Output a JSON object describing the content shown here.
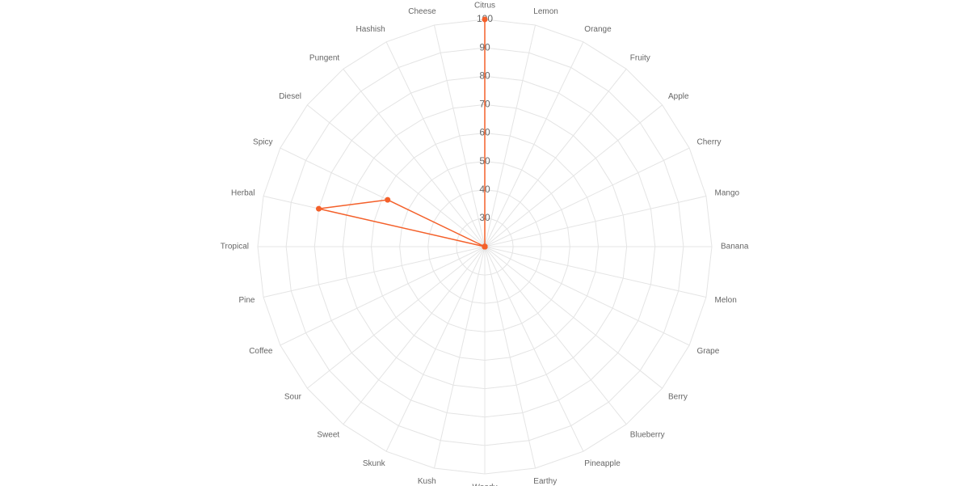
{
  "chart_data": {
    "type": "radar",
    "title": "",
    "axes": [
      "Citrus",
      "Lemon",
      "Orange",
      "Fruity",
      "Apple",
      "Cherry",
      "Mango",
      "Banana",
      "Melon",
      "Grape",
      "Berry",
      "Blueberry",
      "Pineapple",
      "Earthy",
      "Woody",
      "Kush",
      "Skunk",
      "Sweet",
      "Sour",
      "Coffee",
      "Pine",
      "Tropical",
      "Herbal",
      "Spicy",
      "Diesel",
      "Pungent",
      "Hashish",
      "Cheese"
    ],
    "r_range": [
      20,
      100
    ],
    "r_ticks": [
      30,
      40,
      50,
      60,
      70,
      80,
      90,
      100
    ],
    "grid": true,
    "series": [
      {
        "color": "#f4602a",
        "values": [
          100,
          20,
          20,
          20,
          20,
          20,
          20,
          20,
          20,
          20,
          20,
          20,
          20,
          20,
          20,
          20,
          20,
          20,
          20,
          20,
          20,
          20,
          80,
          58,
          20,
          20,
          20,
          20
        ]
      }
    ]
  }
}
